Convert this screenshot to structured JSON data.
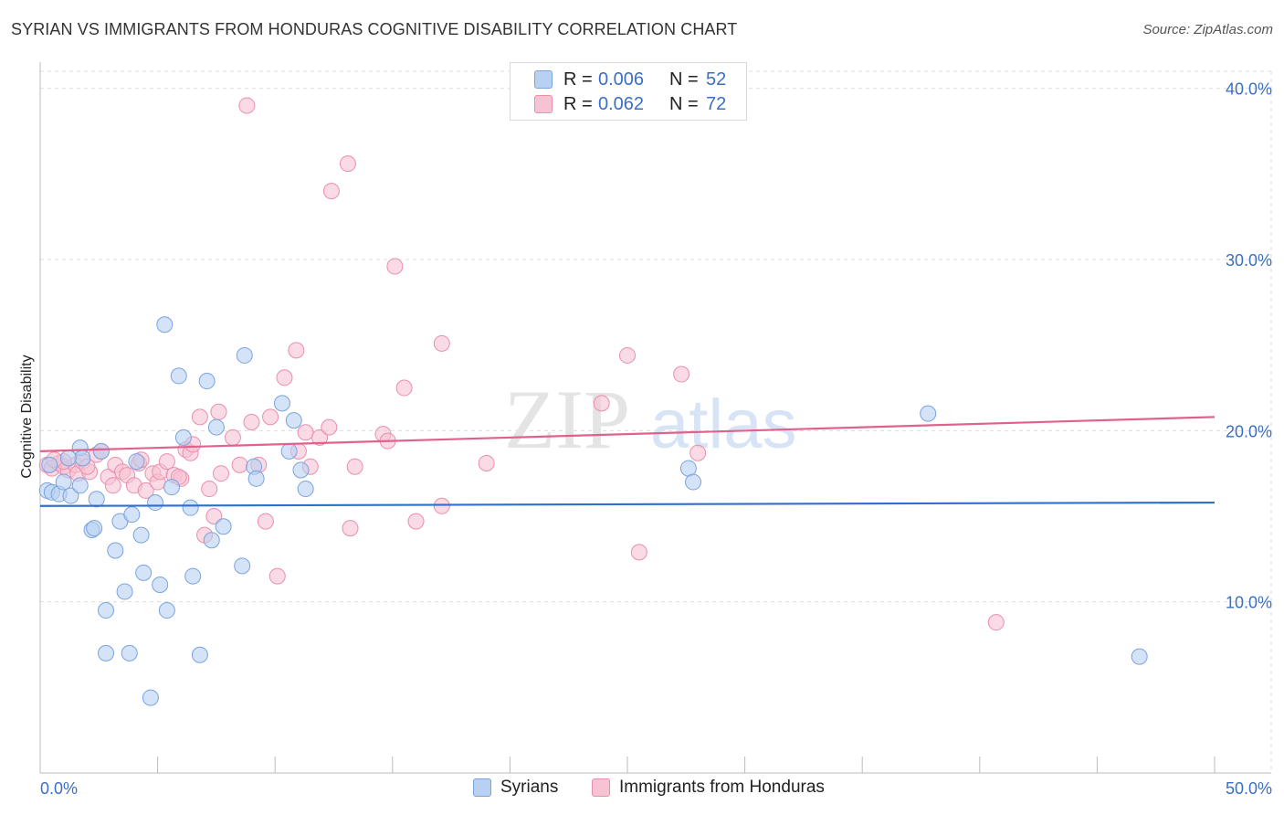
{
  "header": {
    "title": "SYRIAN VS IMMIGRANTS FROM HONDURAS COGNITIVE DISABILITY CORRELATION CHART",
    "source": "Source: ZipAtlas.com"
  },
  "watermark": {
    "zip": "ZIP",
    "atlas": "atlas"
  },
  "legend": {
    "rows": [
      {
        "r_label": "R =",
        "r_value": "0.006",
        "n_label": "N =",
        "n_value": "52"
      },
      {
        "r_label": "R =",
        "r_value": "0.062",
        "n_label": "N =",
        "n_value": "72"
      }
    ]
  },
  "bottom_legend": {
    "syrians": "Syrians",
    "honduras": "Immigrants from Honduras"
  },
  "colors": {
    "syrians_fill": "#b8d0f2",
    "syrians_stroke": "#7ba3de",
    "syrians_line": "#2f6fce",
    "honduras_fill": "#f7c2d2",
    "honduras_stroke": "#ea8fab",
    "honduras_line": "#e0628c",
    "tick_text": "#3a6fc4",
    "grid": "#dddddd"
  },
  "chart_data": {
    "type": "scatter",
    "title": "SYRIAN VS IMMIGRANTS FROM HONDURAS COGNITIVE DISABILITY CORRELATION CHART",
    "xlabel": "",
    "ylabel": "Cognitive Disability",
    "xlim": [
      0,
      50
    ],
    "ylim": [
      0,
      41
    ],
    "x_tick_labels": [
      "0.0%",
      "50.0%"
    ],
    "y_ticks": [
      10,
      20,
      30,
      40
    ],
    "y_tick_labels": [
      "10.0%",
      "20.0%",
      "30.0%",
      "40.0%"
    ],
    "grid": true,
    "series": [
      {
        "name": "Syrians",
        "r": 0.006,
        "n": 52,
        "trend": {
          "x": [
            0,
            50
          ],
          "y": [
            15.6,
            15.8
          ]
        },
        "points": [
          [
            0.3,
            16.5
          ],
          [
            0.5,
            16.4
          ],
          [
            0.8,
            16.3
          ],
          [
            1.0,
            17.0
          ],
          [
            1.3,
            16.2
          ],
          [
            1.7,
            16.8
          ],
          [
            1.7,
            19.0
          ],
          [
            1.8,
            18.4
          ],
          [
            2.2,
            14.2
          ],
          [
            2.3,
            14.3
          ],
          [
            2.6,
            18.8
          ],
          [
            2.8,
            9.5
          ],
          [
            2.8,
            7.0
          ],
          [
            3.2,
            13.0
          ],
          [
            3.4,
            14.7
          ],
          [
            3.6,
            10.6
          ],
          [
            3.8,
            7.0
          ],
          [
            3.9,
            15.1
          ],
          [
            4.1,
            18.2
          ],
          [
            4.3,
            13.9
          ],
          [
            4.4,
            11.7
          ],
          [
            4.7,
            4.4
          ],
          [
            4.9,
            15.8
          ],
          [
            5.1,
            11.0
          ],
          [
            5.3,
            26.2
          ],
          [
            5.4,
            9.5
          ],
          [
            5.6,
            16.7
          ],
          [
            5.9,
            23.2
          ],
          [
            6.1,
            19.6
          ],
          [
            6.4,
            15.5
          ],
          [
            6.5,
            11.5
          ],
          [
            6.8,
            6.9
          ],
          [
            7.1,
            22.9
          ],
          [
            7.3,
            13.6
          ],
          [
            7.5,
            20.2
          ],
          [
            7.8,
            14.4
          ],
          [
            8.6,
            12.1
          ],
          [
            8.7,
            24.4
          ],
          [
            9.1,
            17.9
          ],
          [
            9.2,
            17.2
          ],
          [
            10.3,
            21.6
          ],
          [
            10.6,
            18.8
          ],
          [
            10.8,
            20.6
          ],
          [
            11.3,
            16.6
          ],
          [
            11.1,
            17.7
          ],
          [
            27.6,
            17.8
          ],
          [
            27.8,
            17.0
          ],
          [
            37.8,
            21.0
          ],
          [
            46.8,
            6.8
          ],
          [
            0.4,
            18.0
          ],
          [
            2.4,
            16.0
          ],
          [
            1.2,
            18.4
          ]
        ]
      },
      {
        "name": "Immigrants from Honduras",
        "r": 0.062,
        "n": 72,
        "trend": {
          "x": [
            0,
            50
          ],
          "y": [
            18.8,
            20.8
          ]
        },
        "points": [
          [
            0.3,
            18.0
          ],
          [
            0.5,
            17.8
          ],
          [
            0.8,
            18.1
          ],
          [
            1.0,
            17.9
          ],
          [
            1.2,
            17.7
          ],
          [
            1.5,
            18.0
          ],
          [
            1.6,
            17.5
          ],
          [
            1.8,
            18.2
          ],
          [
            2.1,
            17.6
          ],
          [
            2.4,
            18.6
          ],
          [
            2.6,
            18.8
          ],
          [
            2.9,
            17.3
          ],
          [
            3.1,
            16.8
          ],
          [
            3.2,
            18.0
          ],
          [
            3.5,
            17.6
          ],
          [
            3.7,
            17.4
          ],
          [
            4.0,
            16.8
          ],
          [
            4.2,
            18.1
          ],
          [
            4.3,
            18.3
          ],
          [
            4.5,
            16.5
          ],
          [
            4.8,
            17.5
          ],
          [
            5.0,
            17.0
          ],
          [
            5.1,
            17.6
          ],
          [
            5.4,
            18.2
          ],
          [
            5.7,
            17.4
          ],
          [
            6.0,
            17.2
          ],
          [
            6.2,
            18.9
          ],
          [
            6.4,
            18.7
          ],
          [
            6.5,
            19.2
          ],
          [
            6.8,
            20.8
          ],
          [
            7.0,
            13.9
          ],
          [
            7.2,
            16.6
          ],
          [
            7.4,
            15.0
          ],
          [
            7.6,
            21.1
          ],
          [
            7.7,
            17.5
          ],
          [
            8.2,
            19.6
          ],
          [
            8.5,
            18.0
          ],
          [
            8.8,
            39.0
          ],
          [
            9.0,
            20.5
          ],
          [
            9.3,
            18.0
          ],
          [
            9.6,
            14.7
          ],
          [
            9.8,
            20.8
          ],
          [
            10.1,
            11.5
          ],
          [
            10.4,
            23.1
          ],
          [
            10.9,
            24.7
          ],
          [
            11.0,
            18.8
          ],
          [
            11.3,
            19.9
          ],
          [
            11.5,
            17.9
          ],
          [
            11.9,
            19.6
          ],
          [
            12.3,
            20.2
          ],
          [
            12.4,
            34.0
          ],
          [
            13.1,
            35.6
          ],
          [
            13.2,
            14.3
          ],
          [
            13.4,
            17.9
          ],
          [
            14.6,
            19.8
          ],
          [
            14.8,
            19.4
          ],
          [
            15.1,
            29.6
          ],
          [
            15.5,
            22.5
          ],
          [
            16.0,
            14.7
          ],
          [
            17.1,
            25.1
          ],
          [
            17.1,
            15.6
          ],
          [
            19.0,
            18.1
          ],
          [
            23.9,
            21.6
          ],
          [
            25.0,
            24.4
          ],
          [
            25.5,
            12.9
          ],
          [
            27.3,
            23.3
          ],
          [
            28.0,
            18.7
          ],
          [
            40.7,
            8.8
          ],
          [
            1.0,
            18.2
          ],
          [
            2.0,
            17.9
          ],
          [
            0.6,
            18.3
          ],
          [
            5.9,
            17.3
          ]
        ]
      }
    ]
  }
}
